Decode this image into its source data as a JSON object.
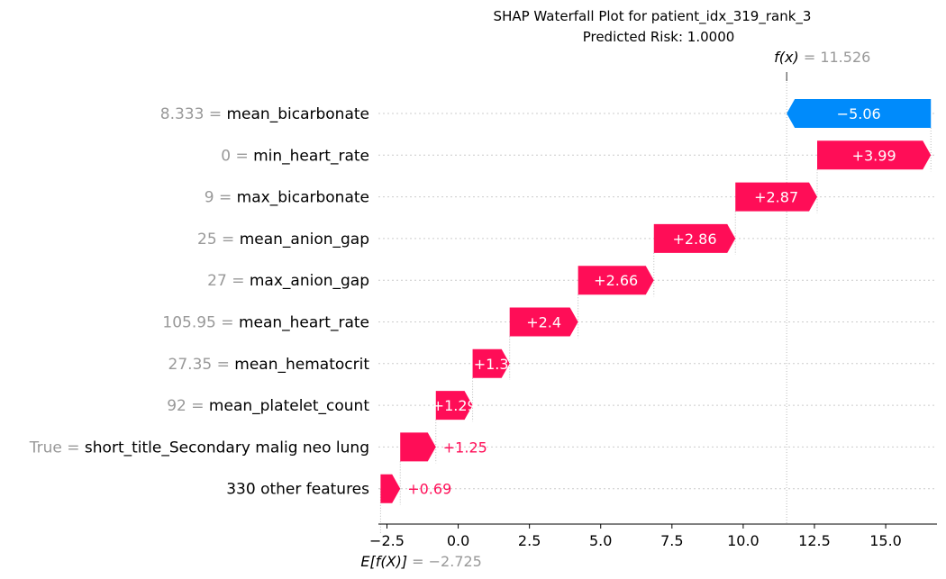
{
  "chart_data": {
    "type": "waterfall",
    "title": "SHAP Waterfall Plot for patient_idx_319_rank_3",
    "subtitle": "Predicted Risk: 1.0000",
    "fx": {
      "label": "f(x)",
      "value_text": "= 11.526",
      "value": 11.526
    },
    "base": {
      "label": "E[f(X)]",
      "value_text": "= −2.725",
      "value": -2.725
    },
    "xlim": [
      -2.8,
      16.8
    ],
    "xticks": [
      -2.5,
      0.0,
      2.5,
      5.0,
      7.5,
      10.0,
      12.5,
      15.0
    ],
    "xtick_labels": [
      "−2.5",
      "0.0",
      "2.5",
      "5.0",
      "7.5",
      "10.0",
      "12.5",
      "15.0"
    ],
    "features": [
      {
        "value_label": "8.333 =",
        "name": "mean_bicarbonate",
        "contribution": -5.06,
        "contribution_text": "−5.06"
      },
      {
        "value_label": "0 =",
        "name": "min_heart_rate",
        "contribution": 3.99,
        "contribution_text": "+3.99"
      },
      {
        "value_label": "9 =",
        "name": "max_bicarbonate",
        "contribution": 2.87,
        "contribution_text": "+2.87"
      },
      {
        "value_label": "25 =",
        "name": "mean_anion_gap",
        "contribution": 2.86,
        "contribution_text": "+2.86"
      },
      {
        "value_label": "27 =",
        "name": "max_anion_gap",
        "contribution": 2.66,
        "contribution_text": "+2.66"
      },
      {
        "value_label": "105.95 =",
        "name": "mean_heart_rate",
        "contribution": 2.4,
        "contribution_text": "+2.4"
      },
      {
        "value_label": "27.35 =",
        "name": "mean_hematocrit",
        "contribution": 1.3,
        "contribution_text": "+1.3"
      },
      {
        "value_label": "92 =",
        "name": "mean_platelet_count",
        "contribution": 1.29,
        "contribution_text": "+1.29"
      },
      {
        "value_label": "True =",
        "name": "short_title_Secondary malig neo lung",
        "contribution": 1.25,
        "contribution_text": "+1.25"
      },
      {
        "value_label": "",
        "name": "330 other features",
        "contribution": 0.69,
        "contribution_text": "+0.69"
      }
    ],
    "colors": {
      "positive": "#ff0d57",
      "negative": "#008bfb",
      "value_gray": "#999999",
      "axis": "#000000",
      "grid": "#cccccc"
    }
  }
}
